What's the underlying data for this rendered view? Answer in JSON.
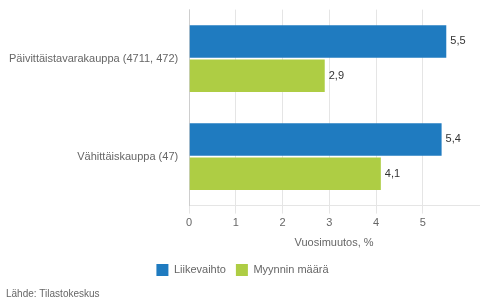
{
  "chart_data": {
    "type": "bar",
    "orientation": "horizontal",
    "categories": [
      "Päivittäistavarakauppa (4711, 472)",
      "Vähittäiskauppa (47)"
    ],
    "series": [
      {
        "name": "Liikevaihto",
        "color": "#1F7BC0",
        "values": [
          5.5,
          5.4
        ],
        "value_labels": [
          "5,5",
          "5,4"
        ]
      },
      {
        "name": "Myynnin määrä",
        "color": "#AECD44",
        "values": [
          2.9,
          4.1
        ],
        "value_labels": [
          "2,9",
          "4,1"
        ]
      }
    ],
    "xlabel": "Vuosimuutos, %",
    "xlim": [
      0,
      6.2
    ],
    "xticks": [
      0,
      1,
      2,
      3,
      4,
      5
    ],
    "grid": true,
    "legend": "bottom",
    "data_labels": true,
    "source": "Lähde: Tilastokeskus"
  }
}
